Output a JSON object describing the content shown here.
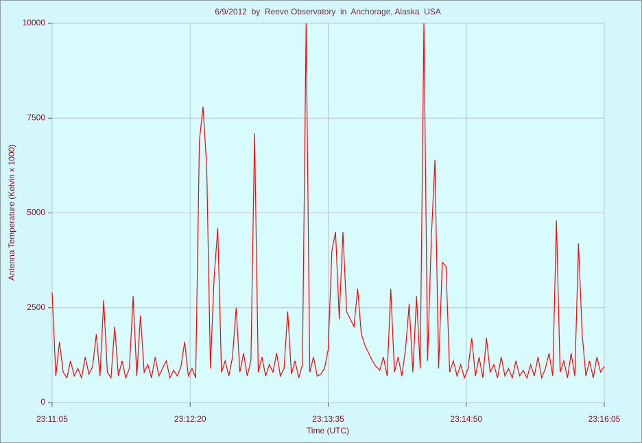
{
  "chart_data": {
    "type": "line",
    "title": "6/9/2012  by  Reeve Observatory  in  Anchorage, Alaska  USA",
    "x_label": "Time (UTC)",
    "y_label": "Antenna Temperature (Kelvin x 1000)",
    "xlim": [
      "23:11:05",
      "23:16:05"
    ],
    "xticks": [
      "23:11:05",
      "23:12:20",
      "23:13:35",
      "23:14:50",
      "23:16:05"
    ],
    "ylim": [
      0,
      10000
    ],
    "yticks": [
      0,
      2500,
      5000,
      7500,
      10000
    ],
    "grid": true,
    "x": [
      "23:11:05",
      "23:11:07",
      "23:11:09",
      "23:11:11",
      "23:11:13",
      "23:11:15",
      "23:11:17",
      "23:11:19",
      "23:11:21",
      "23:11:23",
      "23:11:25",
      "23:11:27",
      "23:11:29",
      "23:11:31",
      "23:11:33",
      "23:11:35",
      "23:11:37",
      "23:11:39",
      "23:11:41",
      "23:11:43",
      "23:11:45",
      "23:11:47",
      "23:11:49",
      "23:11:51",
      "23:11:53",
      "23:11:55",
      "23:11:57",
      "23:11:59",
      "23:12:01",
      "23:12:03",
      "23:12:05",
      "23:12:07",
      "23:12:09",
      "23:12:11",
      "23:12:13",
      "23:12:15",
      "23:12:17",
      "23:12:19",
      "23:12:21",
      "23:12:23",
      "23:12:25",
      "23:12:27",
      "23:12:29",
      "23:12:31",
      "23:12:33",
      "23:12:35",
      "23:12:37",
      "23:12:39",
      "23:12:41",
      "23:12:43",
      "23:12:45",
      "23:12:47",
      "23:12:49",
      "23:12:51",
      "23:12:53",
      "23:12:55",
      "23:12:57",
      "23:12:59",
      "23:13:01",
      "23:13:03",
      "23:13:05",
      "23:13:07",
      "23:13:09",
      "23:13:11",
      "23:13:13",
      "23:13:15",
      "23:13:17",
      "23:13:19",
      "23:13:21",
      "23:13:23",
      "23:13:25",
      "23:13:27",
      "23:13:29",
      "23:13:31",
      "23:13:33",
      "23:13:35",
      "23:13:37",
      "23:13:39",
      "23:13:41",
      "23:13:43",
      "23:13:45",
      "23:13:47",
      "23:13:49",
      "23:13:51",
      "23:13:53",
      "23:13:55",
      "23:13:57",
      "23:13:59",
      "23:14:01",
      "23:14:03",
      "23:14:05",
      "23:14:07",
      "23:14:09",
      "23:14:11",
      "23:14:13",
      "23:14:15",
      "23:14:17",
      "23:14:19",
      "23:14:21",
      "23:14:23",
      "23:14:25",
      "23:14:27",
      "23:14:29",
      "23:14:31",
      "23:14:33",
      "23:14:35",
      "23:14:37",
      "23:14:39",
      "23:14:41",
      "23:14:43",
      "23:14:45",
      "23:14:47",
      "23:14:49",
      "23:14:51",
      "23:14:53",
      "23:14:55",
      "23:14:57",
      "23:14:59",
      "23:15:01",
      "23:15:03",
      "23:15:05",
      "23:15:07",
      "23:15:09",
      "23:15:11",
      "23:15:13",
      "23:15:15",
      "23:15:17",
      "23:15:19",
      "23:15:21",
      "23:15:23",
      "23:15:25",
      "23:15:27",
      "23:15:29",
      "23:15:31",
      "23:15:33",
      "23:15:35",
      "23:15:37",
      "23:15:39",
      "23:15:41",
      "23:15:43",
      "23:15:45",
      "23:15:47",
      "23:15:49",
      "23:15:51",
      "23:15:53",
      "23:15:55",
      "23:15:57",
      "23:15:59",
      "23:16:01",
      "23:16:03",
      "23:16:05"
    ],
    "series": [
      {
        "color": "#ff0000",
        "values": [
          2900,
          700,
          1600,
          800,
          650,
          1100,
          700,
          900,
          650,
          1200,
          750,
          950,
          1800,
          700,
          2700,
          800,
          650,
          2000,
          700,
          1100,
          650,
          900,
          2800,
          700,
          2300,
          800,
          1000,
          650,
          1200,
          700,
          900,
          1100,
          650,
          850,
          700,
          950,
          1600,
          700,
          900,
          650,
          6900,
          7800,
          6200,
          900,
          3300,
          4600,
          800,
          1100,
          700,
          1200,
          2500,
          800,
          1300,
          700,
          1100,
          7100,
          800,
          1200,
          700,
          1000,
          800,
          1300,
          700,
          900,
          2400,
          750,
          1100,
          650,
          1000,
          10000,
          800,
          1200,
          700,
          750,
          900,
          1400,
          4000,
          4500,
          2200,
          4500,
          2400,
          2200,
          2000,
          3000,
          1800,
          1500,
          1300,
          1100,
          950,
          850,
          1200,
          700,
          3000,
          800,
          1200,
          700,
          1400,
          2600,
          800,
          2800,
          900,
          10000,
          1100,
          4300,
          6400,
          900,
          3700,
          3600,
          800,
          1100,
          700,
          1000,
          650,
          900,
          1700,
          700,
          1200,
          650,
          1700,
          800,
          1000,
          650,
          1200,
          700,
          900,
          650,
          1100,
          700,
          850,
          650,
          1000,
          700,
          1200,
          650,
          900,
          1300,
          700,
          4800,
          800,
          1100,
          650,
          1300,
          700,
          4200,
          1800,
          700,
          1100,
          650,
          1200,
          800,
          950
        ]
      }
    ]
  }
}
